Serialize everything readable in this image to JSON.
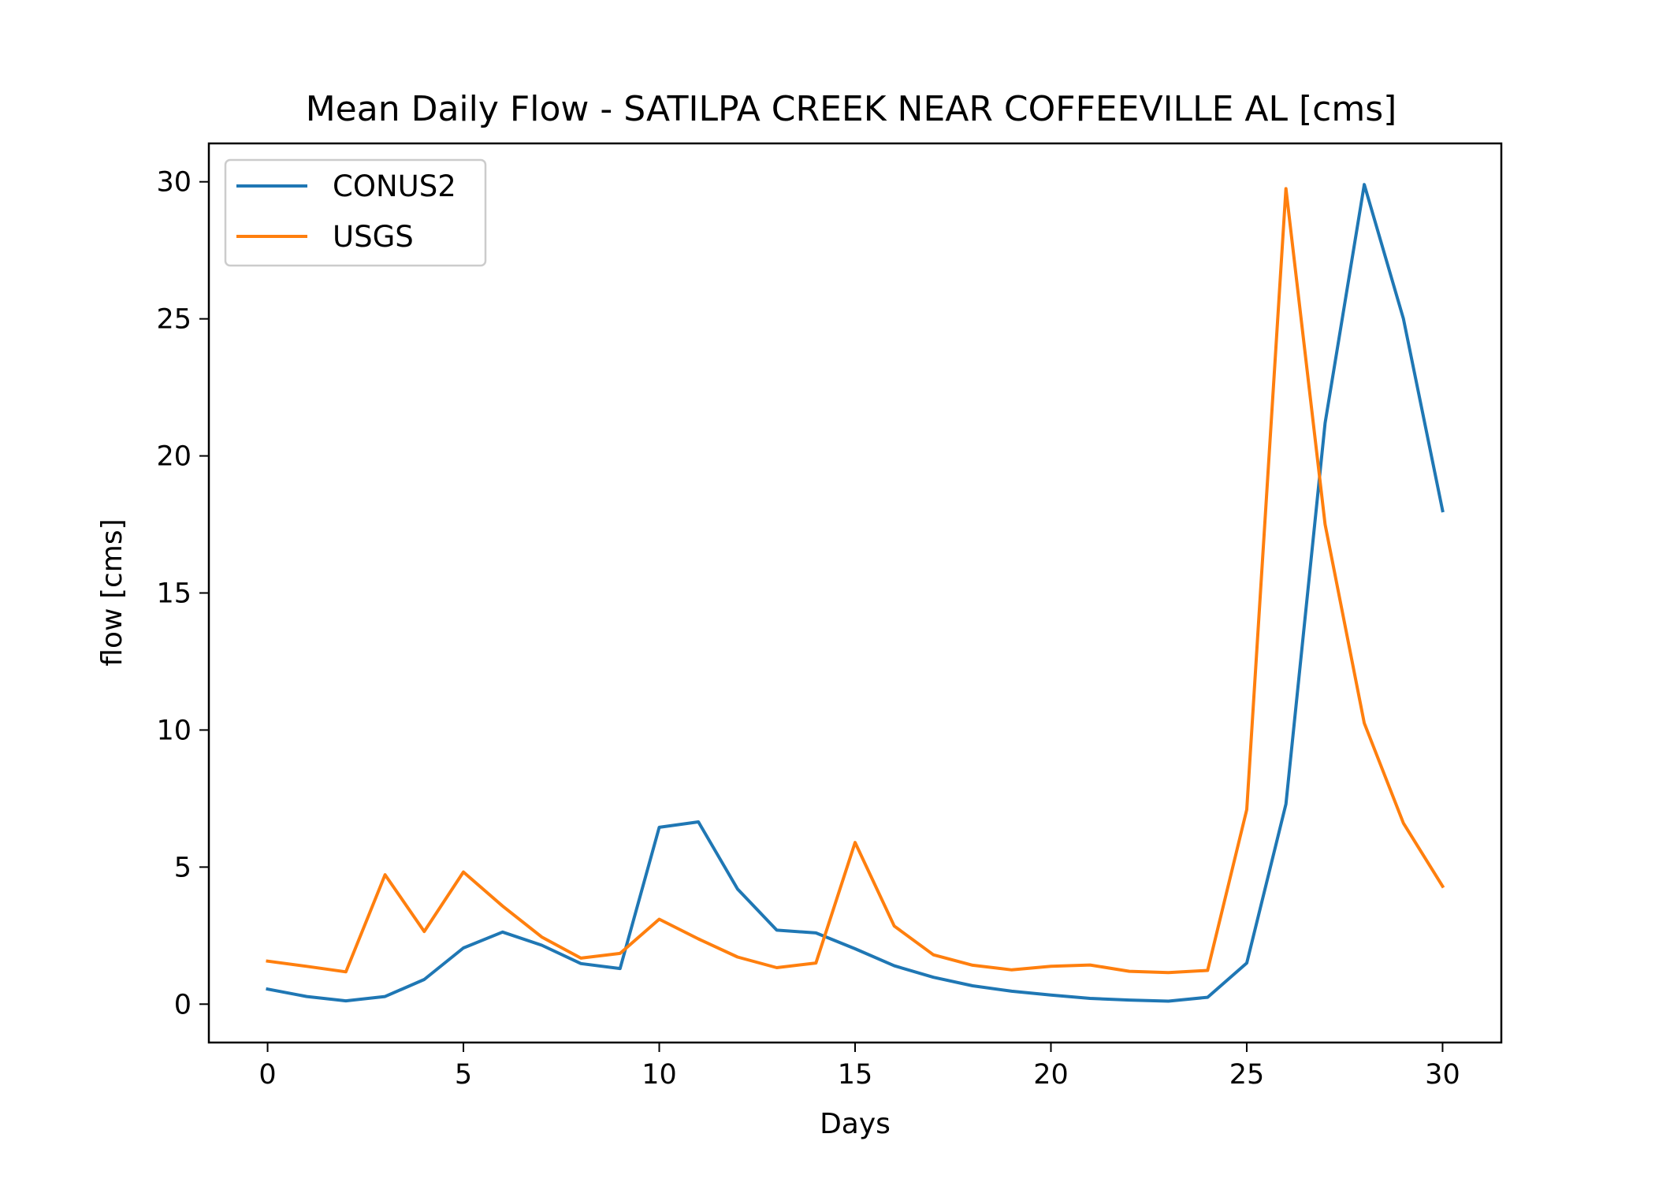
{
  "chart_data": {
    "type": "line",
    "title": "Mean Daily Flow - SATILPA CREEK NEAR COFFEEVILLE AL [cms]",
    "xlabel": "Days",
    "ylabel": "flow [cms]",
    "xlim": [
      -1.5,
      31.5
    ],
    "ylim": [
      -1.4,
      31.4
    ],
    "xticks": [
      0,
      5,
      10,
      15,
      20,
      25,
      30
    ],
    "yticks": [
      0,
      5,
      10,
      15,
      20,
      25,
      30
    ],
    "grid": false,
    "legend_position": "top-left",
    "x": [
      0,
      1,
      2,
      3,
      4,
      5,
      6,
      7,
      8,
      9,
      10,
      11,
      12,
      13,
      14,
      15,
      16,
      17,
      18,
      19,
      20,
      21,
      22,
      23,
      24,
      25,
      26,
      27,
      28,
      29,
      30
    ],
    "series": [
      {
        "name": "CONUS2",
        "color": "#1f77b4",
        "values": [
          0.55,
          0.28,
          0.12,
          0.28,
          0.9,
          2.05,
          2.63,
          2.15,
          1.48,
          1.3,
          6.45,
          6.65,
          4.2,
          2.7,
          2.6,
          2.02,
          1.4,
          0.98,
          0.67,
          0.47,
          0.33,
          0.21,
          0.15,
          0.11,
          0.25,
          1.5,
          7.3,
          21.2,
          29.9,
          25.0,
          18.0
        ]
      },
      {
        "name": "USGS",
        "color": "#ff7f0e",
        "values": [
          1.57,
          1.38,
          1.18,
          4.72,
          2.65,
          4.82,
          3.58,
          2.45,
          1.68,
          1.85,
          3.1,
          2.38,
          1.72,
          1.33,
          1.5,
          5.9,
          2.85,
          1.8,
          1.42,
          1.25,
          1.38,
          1.43,
          1.2,
          1.15,
          1.23,
          7.1,
          29.75,
          17.5,
          10.25,
          6.6,
          4.3
        ]
      }
    ]
  }
}
